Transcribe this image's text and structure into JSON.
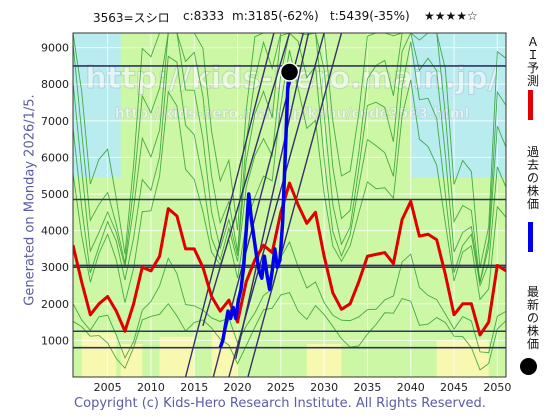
{
  "header": {
    "code_name": "3563=スシロ",
    "current": "c:8333",
    "min": "m:3185(-62%)",
    "target": "t:5439(-35%)",
    "rating": "★★★★☆"
  },
  "side_label": "Generated on Monday 2026/1/5.",
  "legend": {
    "ai_forecast": "ＡＩ予測",
    "past_price": "過去の株価",
    "latest_price": "最新の株価"
  },
  "watermark": {
    "primary": "http://kids-hero.main.jp/",
    "secondary": "http://kids-hero.main.jp/kabu/code3563.html"
  },
  "copyright": "Copyright (c) Kids-Hero Research Institute. All Rights Reserved.",
  "colors": {
    "ai_forecast": "#e00000",
    "past_price": "#0000ee",
    "latest_marker": "#000000",
    "band_light_green": "#ccf7a4",
    "band_yellow": "#f8f8b0",
    "band_cyan": "#b8ecee",
    "envelope_green": "#2e9e2e",
    "horizontal_lines": "#333366",
    "trend_lines": "#333366"
  },
  "chart_data": {
    "type": "line",
    "xlim": [
      2001,
      2051
    ],
    "ylim": [
      0,
      9400
    ],
    "x_ticks": [
      2005,
      2010,
      2015,
      2020,
      2025,
      2030,
      2035,
      2040,
      2045,
      2050
    ],
    "y_ticks": [
      1000,
      2000,
      3000,
      4000,
      5000,
      6000,
      7000,
      8000,
      9000
    ],
    "grid": true,
    "legend_position": "right-vertical",
    "latest_point": {
      "x": 2026.0,
      "y": 8333
    },
    "horizontal_levels": [
      8500,
      4850,
      3050,
      3000,
      1250,
      800
    ],
    "series": [
      {
        "key": "ai_forecast",
        "x": [
          2001,
          2002,
          2003,
          2004,
          2005,
          2006,
          2007,
          2008,
          2009,
          2010,
          2011,
          2012,
          2013,
          2014,
          2015,
          2016,
          2017,
          2018,
          2019,
          2020,
          2021,
          2022,
          2023,
          2024,
          2025,
          2026,
          2027,
          2028,
          2029,
          2030,
          2031,
          2032,
          2033,
          2034,
          2035,
          2036,
          2037,
          2038,
          2039,
          2040,
          2041,
          2042,
          2043,
          2044,
          2045,
          2046,
          2047,
          2048,
          2049,
          2050,
          2051
        ],
        "y": [
          3600,
          2600,
          1700,
          2000,
          2200,
          1800,
          1250,
          2000,
          3000,
          2900,
          3300,
          4600,
          4400,
          3500,
          3500,
          3000,
          2200,
          1800,
          2100,
          1500,
          2600,
          3200,
          3600,
          3400,
          4500,
          5300,
          4700,
          4200,
          4500,
          3300,
          2300,
          1850,
          2000,
          2600,
          3300,
          3350,
          3400,
          3100,
          4300,
          4800,
          3850,
          3900,
          3750,
          2800,
          1700,
          2000,
          2000,
          1150,
          1500,
          3050,
          2900
        ]
      },
      {
        "key": "past_price",
        "x": [
          2018.0,
          2018.3,
          2018.6,
          2018.9,
          2019.2,
          2019.5,
          2019.8,
          2020.1,
          2020.4,
          2020.7,
          2021.0,
          2021.3,
          2021.6,
          2021.9,
          2022.2,
          2022.5,
          2022.8,
          2023.1,
          2023.4,
          2023.7,
          2024.0,
          2024.3,
          2024.6,
          2024.9,
          2025.2,
          2025.5,
          2025.8,
          2026.0
        ],
        "y": [
          800,
          1000,
          1400,
          1800,
          1600,
          1900,
          1600,
          2100,
          2400,
          3000,
          4000,
          5000,
          4300,
          3800,
          3300,
          2900,
          2700,
          3300,
          2800,
          2400,
          2900,
          3500,
          3000,
          3200,
          4200,
          6000,
          7900,
          8333
        ]
      }
    ],
    "trend_lines": [
      {
        "p1": [
          2017.2,
          0
        ],
        "p2": [
          2027.6,
          9400
        ]
      },
      {
        "p1": [
          2019.0,
          0
        ],
        "p2": [
          2030.0,
          9400
        ]
      },
      {
        "p1": [
          2014.0,
          0
        ],
        "p2": [
          2024.2,
          9400
        ]
      },
      {
        "p1": [
          2016.0,
          1400
        ],
        "p2": [
          2026.0,
          9400
        ]
      },
      {
        "p1": [
          2019.8,
          500
        ],
        "p2": [
          2028.2,
          9400
        ]
      },
      {
        "p1": [
          2021.2,
          0
        ],
        "p2": [
          2032.0,
          9400
        ]
      }
    ]
  }
}
